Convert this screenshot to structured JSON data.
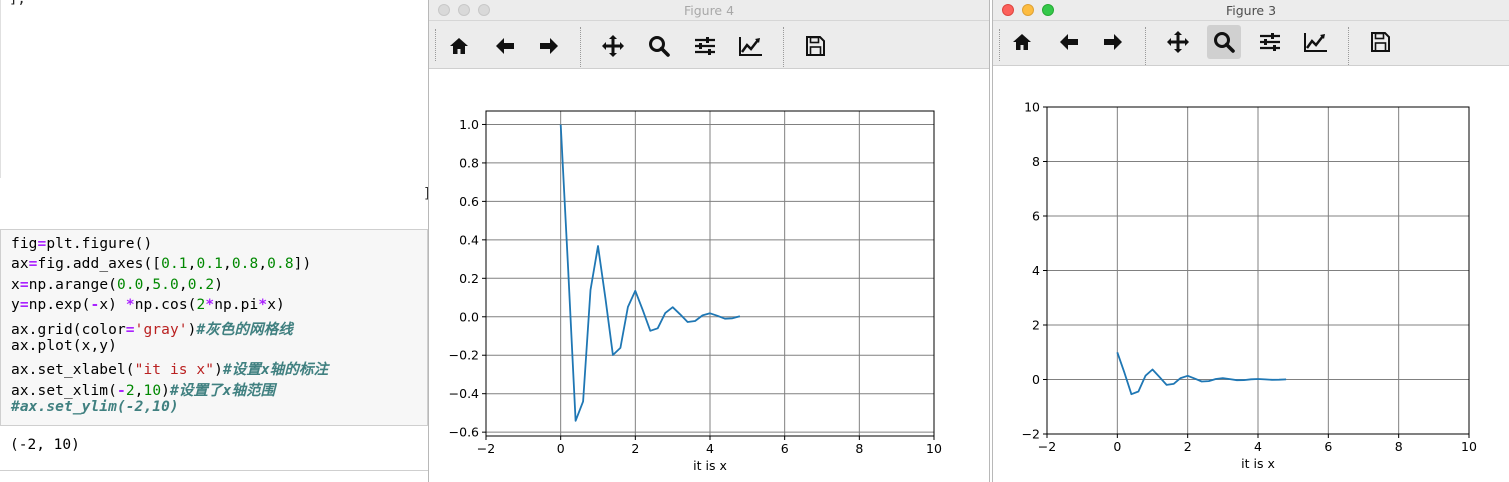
{
  "notebook": {
    "prev_output_fragment": "],",
    "prev_bracket": "]",
    "code_lines": [
      [
        {
          "t": "fig"
        },
        {
          "t": "=",
          "c": "op"
        },
        {
          "t": "plt.figure()"
        }
      ],
      [
        {
          "t": "ax"
        },
        {
          "t": "=",
          "c": "op"
        },
        {
          "t": "fig.add_axes(["
        },
        {
          "t": "0.1",
          "c": "num"
        },
        {
          "t": ","
        },
        {
          "t": "0.1",
          "c": "num"
        },
        {
          "t": ","
        },
        {
          "t": "0.8",
          "c": "num"
        },
        {
          "t": ","
        },
        {
          "t": "0.8",
          "c": "num"
        },
        {
          "t": "])"
        }
      ],
      [
        {
          "t": "x"
        },
        {
          "t": "=",
          "c": "op"
        },
        {
          "t": "np.arange("
        },
        {
          "t": "0.0",
          "c": "num"
        },
        {
          "t": ","
        },
        {
          "t": "5.0",
          "c": "num"
        },
        {
          "t": ","
        },
        {
          "t": "0.2",
          "c": "num"
        },
        {
          "t": ")"
        }
      ],
      [
        {
          "t": "y"
        },
        {
          "t": "=",
          "c": "op"
        },
        {
          "t": "np.exp("
        },
        {
          "t": "-",
          "c": "op"
        },
        {
          "t": "x) "
        },
        {
          "t": "*",
          "c": "op"
        },
        {
          "t": "np.cos("
        },
        {
          "t": "2",
          "c": "num"
        },
        {
          "t": "*",
          "c": "op"
        },
        {
          "t": "np.pi"
        },
        {
          "t": "*",
          "c": "op"
        },
        {
          "t": "x)"
        }
      ],
      [
        {
          "t": "ax.grid(color"
        },
        {
          "t": "=",
          "c": "op"
        },
        {
          "t": "'gray'",
          "c": "str"
        },
        {
          "t": ")"
        },
        {
          "t": "#灰色的网格线",
          "c": "com"
        }
      ],
      [
        {
          "t": "ax.plot(x,y)"
        }
      ],
      [
        {
          "t": "ax.set_xlabel("
        },
        {
          "t": "\"it is x\"",
          "c": "str"
        },
        {
          "t": ")"
        },
        {
          "t": "#设置x轴的标注",
          "c": "com"
        }
      ],
      [
        {
          "t": "ax.set_xlim("
        },
        {
          "t": "-",
          "c": "op"
        },
        {
          "t": "2",
          "c": "num"
        },
        {
          "t": ","
        },
        {
          "t": "10",
          "c": "num"
        },
        {
          "t": ")"
        },
        {
          "t": "#设置了x轴范围",
          "c": "com"
        }
      ],
      [
        {
          "t": "#ax.set_ylim(-2,10)",
          "c": "com"
        }
      ]
    ],
    "output": "(-2, 10)"
  },
  "figures": [
    {
      "title": "Figure 4",
      "focused": false,
      "active_tool": "",
      "xlabel": "it is x"
    },
    {
      "title": "Figure 3",
      "focused": true,
      "active_tool": "zoom",
      "xlabel": "it is x"
    }
  ],
  "toolbar_icons": [
    "home-icon",
    "back-arrow-icon",
    "forward-arrow-icon",
    "pan-icon",
    "zoom-icon",
    "subplots-icon",
    "edit-axes-icon",
    "save-icon"
  ],
  "colors": {
    "line": "#1f77b4",
    "grid": "#808080",
    "toolbar": "#ececec"
  },
  "chart_data": [
    {
      "type": "line",
      "title": "",
      "xlabel": "it is x",
      "ylabel": "",
      "xlim": [
        -2,
        10
      ],
      "ylim": [
        -0.62,
        1.07
      ],
      "xticks": [
        -2,
        0,
        2,
        4,
        6,
        8,
        10
      ],
      "yticks": [
        -0.6,
        -0.4,
        -0.2,
        0.0,
        0.2,
        0.4,
        0.6,
        0.8,
        1.0
      ],
      "ytick_labels": [
        "−0.6",
        "−0.4",
        "−0.2",
        "0.0",
        "0.2",
        "0.4",
        "0.6",
        "0.8",
        "1.0"
      ],
      "xtick_labels": [
        "−2",
        "0",
        "2",
        "4",
        "6",
        "8",
        "10"
      ],
      "grid": true,
      "series": [
        {
          "x": [
            0.0,
            0.2,
            0.4,
            0.6,
            0.8,
            1.0,
            1.2,
            1.4,
            1.6,
            1.8,
            2.0,
            2.2,
            2.4,
            2.6,
            2.8,
            3.0,
            3.2,
            3.4,
            3.6,
            3.8,
            4.0,
            4.2,
            4.4,
            4.6,
            4.8
          ],
          "y": [
            1.0,
            0.253,
            -0.541,
            -0.44,
            0.139,
            0.368,
            0.093,
            -0.199,
            -0.162,
            0.051,
            0.135,
            0.034,
            -0.073,
            -0.06,
            0.019,
            0.05,
            0.013,
            -0.027,
            -0.022,
            0.007,
            0.018,
            0.005,
            -0.01,
            -0.008,
            0.003
          ]
        }
      ]
    },
    {
      "type": "line",
      "title": "",
      "xlabel": "it is x",
      "ylabel": "",
      "xlim": [
        -2,
        10
      ],
      "ylim": [
        -2,
        10
      ],
      "xticks": [
        -2,
        0,
        2,
        4,
        6,
        8,
        10
      ],
      "yticks": [
        -2,
        0,
        2,
        4,
        6,
        8,
        10
      ],
      "ytick_labels": [
        "−2",
        "0",
        "2",
        "4",
        "6",
        "8",
        "10"
      ],
      "xtick_labels": [
        "−2",
        "0",
        "2",
        "4",
        "6",
        "8",
        "10"
      ],
      "grid": true,
      "series": [
        {
          "x": [
            0.0,
            0.2,
            0.4,
            0.6,
            0.8,
            1.0,
            1.2,
            1.4,
            1.6,
            1.8,
            2.0,
            2.2,
            2.4,
            2.6,
            2.8,
            3.0,
            3.2,
            3.4,
            3.6,
            3.8,
            4.0,
            4.2,
            4.4,
            4.6,
            4.8
          ],
          "y": [
            1.0,
            0.253,
            -0.541,
            -0.44,
            0.139,
            0.368,
            0.093,
            -0.199,
            -0.162,
            0.051,
            0.135,
            0.034,
            -0.073,
            -0.06,
            0.019,
            0.05,
            0.013,
            -0.027,
            -0.022,
            0.007,
            0.018,
            0.005,
            -0.01,
            -0.008,
            0.003
          ]
        }
      ]
    }
  ]
}
